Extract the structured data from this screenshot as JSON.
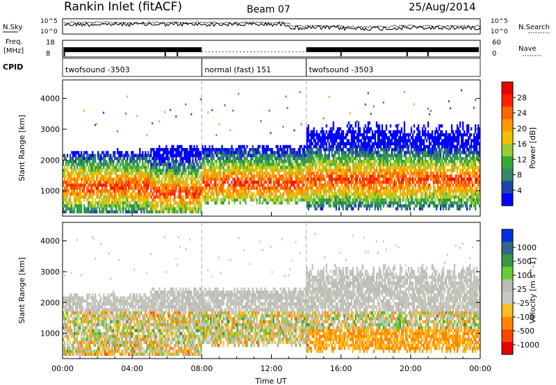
{
  "header": {
    "station": "Rankin Inlet (fitACF)",
    "beam": "Beam 07",
    "date": "25/Aug/2014"
  },
  "aux": {
    "nsky_label": "N.Sky",
    "nsearch_label": "N.Search",
    "nsky_ticks": [
      "10^5",
      "10^0"
    ],
    "nsearch_ticks": [
      "10^5",
      "10^0"
    ],
    "freq_label": "Freq.",
    "freq_unit": "[MHz]",
    "freq_ticks": [
      "18",
      "8"
    ],
    "nave_label": "Nave",
    "nave_ticks": [
      "60",
      "0"
    ],
    "cpid_label": "CPID",
    "cpid_segments": [
      {
        "start_hour": 0,
        "end_hour": 8,
        "text": "twofsound -3503"
      },
      {
        "start_hour": 8,
        "end_hour": 14,
        "text": "normal (fast) 151"
      },
      {
        "start_hour": 14,
        "end_hour": 24,
        "text": "twofsound -3503"
      }
    ]
  },
  "colors": {
    "power": [
      "#0000ff",
      "#2244aa",
      "#338866",
      "#33aa33",
      "#99cc33",
      "#f0c000",
      "#ff9900",
      "#ff6600",
      "#ff2200",
      "#ee0000"
    ],
    "velocity": [
      "#ee0000",
      "#ff4400",
      "#ff8800",
      "#ffbb22",
      "#c8c8c0",
      "#bcbcb4",
      "#66cc33",
      "#339944",
      "#336688",
      "#0033dd"
    ],
    "frame": "#000000"
  },
  "chart_data": [
    {
      "type": "heatmap",
      "parameter": "Power",
      "ylabel": "Slant Range [km]",
      "ylim": [
        180,
        4600
      ],
      "xlim_hours": [
        0,
        24
      ],
      "yticks": [
        1000,
        2000,
        3000,
        4000
      ],
      "colorbar": {
        "label": "Power [dB]",
        "ticks": [
          "4",
          "8",
          "12",
          "16",
          "20",
          "24",
          "28"
        ],
        "range": [
          0,
          30
        ]
      },
      "bands": [
        {
          "start_hour": 0,
          "end_hour": 5,
          "lower_km": 250,
          "upper_km": 2200,
          "peak_db": 28
        },
        {
          "start_hour": 5,
          "end_hour": 8,
          "lower_km": 250,
          "upper_km": 2400,
          "peak_db": 28
        },
        {
          "start_hour": 8,
          "end_hour": 14,
          "lower_km": 500,
          "upper_km": 2400,
          "peak_db": 26
        },
        {
          "start_hour": 14,
          "end_hour": 24,
          "lower_km": 300,
          "upper_km": 3000,
          "peak_db": 24
        }
      ]
    },
    {
      "type": "heatmap",
      "parameter": "Velocity",
      "ylabel": "Slant Range [km]",
      "xlabel": "Time UT",
      "ylim": [
        180,
        4600
      ],
      "xlim_hours": [
        0,
        24
      ],
      "yticks": [
        1000,
        2000,
        3000,
        4000
      ],
      "xticks": [
        "00:00",
        "04:00",
        "08:00",
        "12:00",
        "16:00",
        "20:00",
        "00:00"
      ],
      "colorbar": {
        "label": "Velocity [m s^-1]",
        "ticks": [
          "1000",
          "500",
          "100",
          "25",
          "-25",
          "-100",
          "-500",
          "-1000"
        ],
        "range": [
          -1000,
          1000
        ]
      }
    }
  ]
}
